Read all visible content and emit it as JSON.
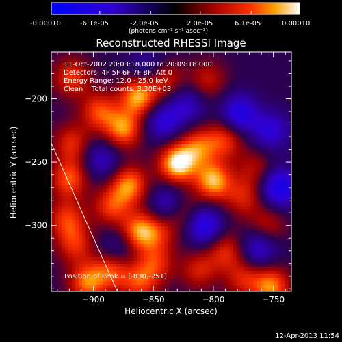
{
  "colorbar": {
    "tick_labels": [
      "-0.00010",
      "-6.1e-05",
      "-2.0e-05",
      "2.0e-05",
      "6.1e-05",
      "0.00010"
    ],
    "units_label": "(photons cm⁻² s⁻¹ asec⁻²)",
    "range": [
      -0.0001,
      0.0001
    ]
  },
  "footer": {
    "timestamp": "12-Apr-2013 11:54"
  },
  "chart_data": {
    "type": "heatmap",
    "title": "Reconstructed RHESSI Image",
    "xlabel": "Heliocentric X (arcsec)",
    "ylabel": "Heliocentric Y (arcsec)",
    "xlim": [
      -935,
      -735
    ],
    "ylim": [
      -352,
      -163
    ],
    "x_ticks": [
      -900,
      -850,
      -800,
      -750
    ],
    "y_ticks": [
      -200,
      -250,
      -300
    ],
    "x_tick_labels": [
      "−900",
      "−850",
      "−800",
      "−750"
    ],
    "y_tick_labels": [
      "−200",
      "−250",
      "−300"
    ],
    "annotations": [
      "11-Oct-2002 20:03:18.000 to 20:09:18.000",
      "Detectors: 4F 5F 6F 7F 8F, Att 0",
      "Energy Range: 12.0 - 25.0 keV",
      "Clean    Total counts: 3.30E+03"
    ],
    "peak_label": "Position of Peak = [-830,-251]",
    "peak_position": [
      -830,
      -251
    ],
    "blobs": [
      {
        "x": -830,
        "y": -251,
        "value": 1.0
      },
      {
        "x": -800,
        "y": -265,
        "value": 0.85
      },
      {
        "x": -862,
        "y": -198,
        "value": 0.85
      },
      {
        "x": -875,
        "y": -224,
        "value": 0.75
      },
      {
        "x": -895,
        "y": -210,
        "value": 0.6
      },
      {
        "x": -870,
        "y": -268,
        "value": 0.75
      },
      {
        "x": -862,
        "y": -305,
        "value": 0.75
      },
      {
        "x": -885,
        "y": -285,
        "value": 0.55
      },
      {
        "x": -885,
        "y": -335,
        "value": 0.6
      },
      {
        "x": -920,
        "y": -263,
        "value": 0.65
      },
      {
        "x": -922,
        "y": -295,
        "value": 0.55
      },
      {
        "x": -918,
        "y": -235,
        "value": 0.5
      },
      {
        "x": -915,
        "y": -315,
        "value": 0.5
      },
      {
        "x": -918,
        "y": -183,
        "value": 0.55
      },
      {
        "x": -812,
        "y": -238,
        "value": 0.6
      },
      {
        "x": -790,
        "y": -232,
        "value": 0.55
      },
      {
        "x": -790,
        "y": -320,
        "value": 0.5
      },
      {
        "x": -775,
        "y": -278,
        "value": 0.45
      },
      {
        "x": -812,
        "y": -335,
        "value": 0.45
      },
      {
        "x": -848,
        "y": -330,
        "value": 0.5
      },
      {
        "x": -840,
        "y": -185,
        "value": 0.45
      },
      {
        "x": -845,
        "y": -305,
        "value": 0.4
      },
      {
        "x": -905,
        "y": -345,
        "value": 0.7
      },
      {
        "x": -862,
        "y": -345,
        "value": 0.55
      },
      {
        "x": -752,
        "y": -348,
        "value": 0.75
      },
      {
        "x": -755,
        "y": -300,
        "value": 0.4
      },
      {
        "x": -805,
        "y": -185,
        "value": 0.4
      },
      {
        "x": -775,
        "y": -342,
        "value": 0.45
      },
      {
        "x": -825,
        "y": -290,
        "value": 0.4
      },
      {
        "x": -765,
        "y": -255,
        "value": 0.35
      },
      {
        "x": -778,
        "y": -212,
        "value": -0.7
      },
      {
        "x": -745,
        "y": -270,
        "value": -0.8
      },
      {
        "x": -808,
        "y": -300,
        "value": -0.75
      },
      {
        "x": -762,
        "y": -318,
        "value": -0.55
      },
      {
        "x": -842,
        "y": -218,
        "value": -0.55
      },
      {
        "x": -838,
        "y": -283,
        "value": -0.5
      },
      {
        "x": -893,
        "y": -248,
        "value": -0.45
      },
      {
        "x": -752,
        "y": -225,
        "value": -0.55
      },
      {
        "x": -822,
        "y": -205,
        "value": -0.45
      },
      {
        "x": -855,
        "y": -175,
        "value": -0.35
      },
      {
        "x": -880,
        "y": -318,
        "value": -0.35
      }
    ],
    "limb_line": [
      [
        -935,
        -235
      ],
      [
        -880,
        -352
      ]
    ]
  }
}
